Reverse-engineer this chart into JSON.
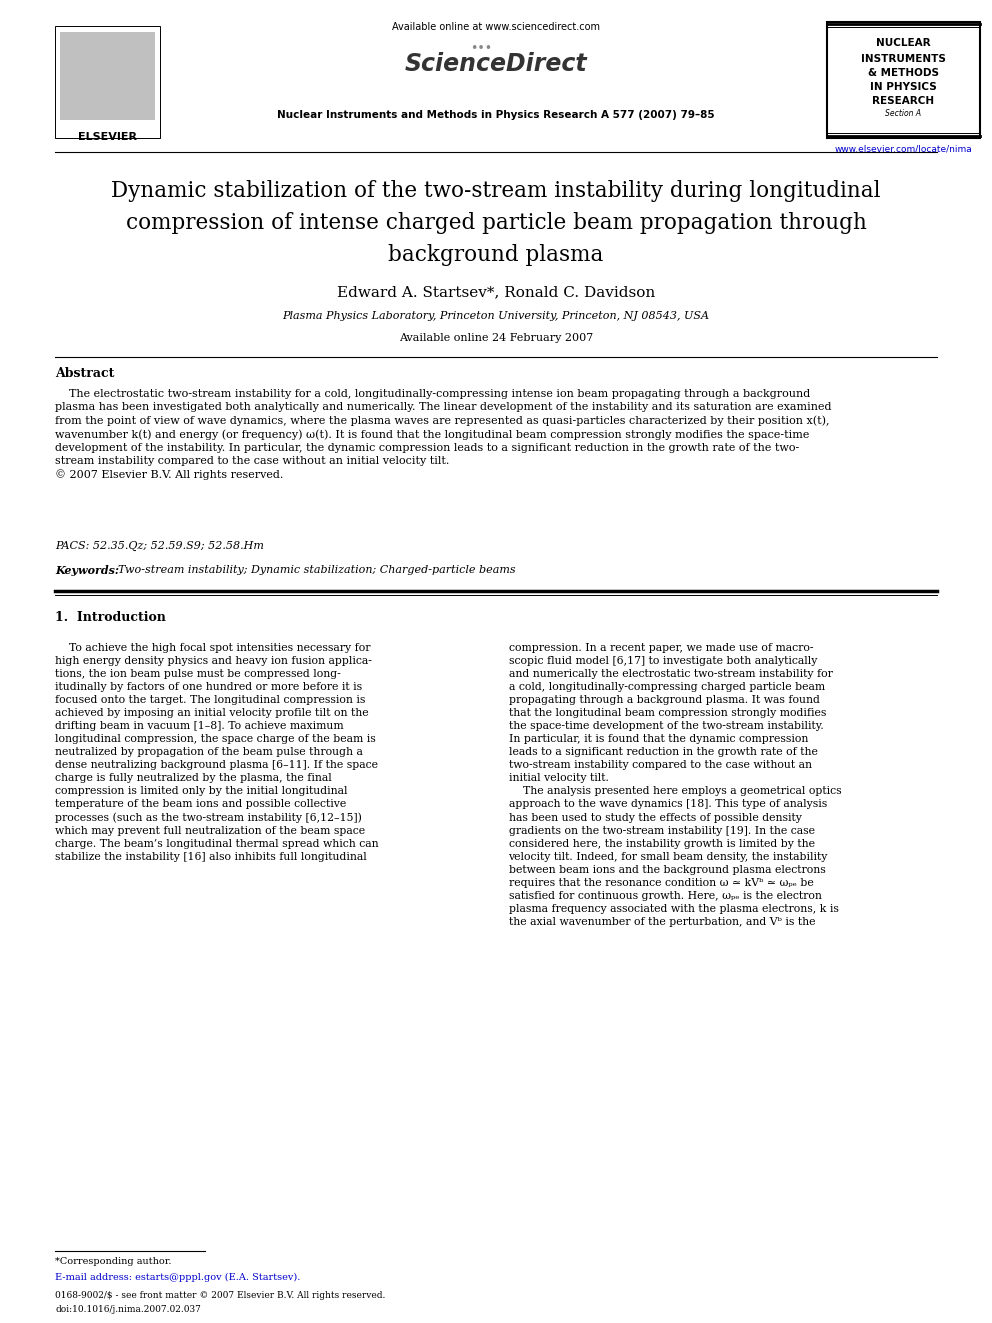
{
  "page_width": 9.92,
  "page_height": 13.23,
  "bg_color": "#ffffff",
  "header": {
    "available_online_text": "Available online at www.sciencedirect.com",
    "journal_name_bold": "Nuclear Instruments and Methods in Physics Research A 577 (2007) 79–85",
    "sciencedirect_text": "ScienceDirect",
    "journal_box_lines": [
      "NUCLEAR",
      "INSTRUMENTS",
      "& METHODS",
      "IN PHYSICS",
      "RESEARCH",
      "Section A"
    ],
    "website_url": "www.elsevier.com/locate/nima",
    "elsevier_text": "ELSEVIER"
  },
  "title_line1": "Dynamic stabilization of the two-stream instability during longitudinal",
  "title_line2": "compression of intense charged particle beam propagation through",
  "title_line3": "background plasma",
  "authors": "Edward A. Startsev*, Ronald C. Davidson",
  "affiliation": "Plasma Physics Laboratory, Princeton University, Princeton, NJ 08543, USA",
  "available_online": "Available online 24 February 2007",
  "abstract_heading": "Abstract",
  "abstract_text": "    The electrostatic two-stream instability for a cold, longitudinally-compressing intense ion beam propagating through a background\nplasma has been investigated both analytically and numerically. The linear development of the instability and its saturation are examined\nfrom the point of view of wave dynamics, where the plasma waves are represented as quasi-particles characterized by their position x(t),\nwavenumber k(t) and energy (or frequency) ω(t). It is found that the longitudinal beam compression strongly modifies the space-time\ndevelopment of the instability. In particular, the dynamic compression leads to a significant reduction in the growth rate of the two-\nstream instability compared to the case without an initial velocity tilt.\n© 2007 Elsevier B.V. All rights reserved.",
  "pacs_text": "PACS: 52.35.Qz; 52.59.S9; 52.58.Hm",
  "keywords_label": "Keywords: ",
  "keywords_val": "Two-stream instability; Dynamic stabilization; Charged-particle beams",
  "section1_heading": "1.  Introduction",
  "col1_intro": "    To achieve the high focal spot intensities necessary for\nhigh energy density physics and heavy ion fusion applica-\ntions, the ion beam pulse must be compressed long-\nitudinally by factors of one hundred or more before it is\nfocused onto the target. The longitudinal compression is\nachieved by imposing an initial velocity profile tilt on the\ndrifting beam in vacuum [1–8]. To achieve maximum\nlongitudinal compression, the space charge of the beam is\nneutralized by propagation of the beam pulse through a\ndense neutralizing background plasma [6–11]. If the space\ncharge is fully neutralized by the plasma, the final\ncompression is limited only by the initial longitudinal\ntemperature of the beam ions and possible collective\nprocesses (such as the two-stream instability [6,12–15])\nwhich may prevent full neutralization of the beam space\ncharge. The beam’s longitudinal thermal spread which can\nstabilize the instability [16] also inhibits full longitudinal",
  "col2_intro": "compression. In a recent paper, we made use of macro-\nscopic fluid model [6,17] to investigate both analytically\nand numerically the electrostatic two-stream instability for\na cold, longitudinally-compressing charged particle beam\npropagating through a background plasma. It was found\nthat the longitudinal beam compression strongly modifies\nthe space-time development of the two-stream instability.\nIn particular, it is found that the dynamic compression\nleads to a significant reduction in the growth rate of the\ntwo-stream instability compared to the case without an\ninitial velocity tilt.\n    The analysis presented here employs a geometrical optics\napproach to the wave dynamics [18]. This type of analysis\nhas been used to study the effects of possible density\ngradients on the two-stream instability [19]. In the case\nconsidered here, the instability growth is limited by the\nvelocity tilt. Indeed, for small beam density, the instability\nbetween beam ions and the background plasma electrons\nrequires that the resonance condition ω ≃ kVᵇ ≃ ωₚₑ be\nsatisfied for continuous growth. Here, ωₚₑ is the electron\nplasma frequency associated with the plasma electrons, k is\nthe axial wavenumber of the perturbation, and Vᵇ is the",
  "footnote_star": "*Corresponding author.",
  "footnote_email": "E-mail address: estarts@pppl.gov (E.A. Startsev).",
  "footer_line1": "0168-9002/$ - see front matter © 2007 Elsevier B.V. All rights reserved.",
  "footer_line2": "doi:10.1016/j.nima.2007.02.037",
  "text_color": "#000000",
  "link_color": "#0000cc"
}
